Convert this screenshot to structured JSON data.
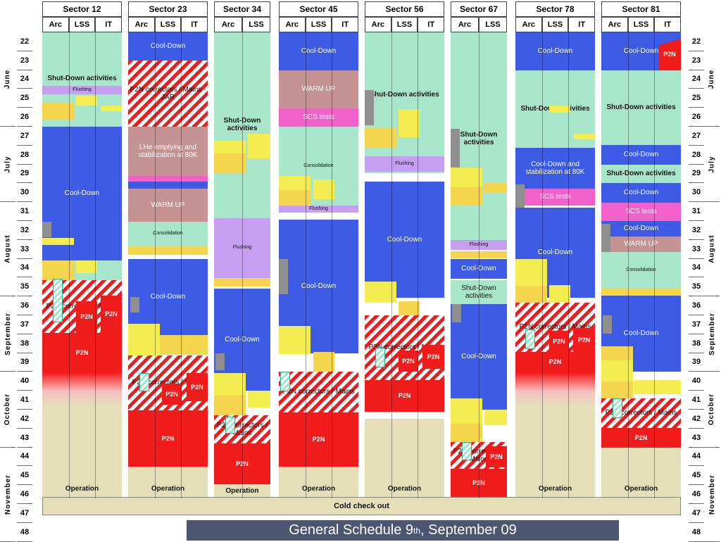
{
  "sectors": [
    {
      "name": "Sector 12",
      "subs": [
        "Arc",
        "LSS",
        "IT"
      ]
    },
    {
      "name": "Sector 23",
      "subs": [
        "Arc",
        "LSS",
        "IT"
      ]
    },
    {
      "name": "Sector 34",
      "subs": [
        "Arc",
        "LSS"
      ]
    },
    {
      "name": "Sector 45",
      "subs": [
        "Arc",
        "LSS",
        "IT"
      ]
    },
    {
      "name": "Sector 56",
      "subs": [
        "Arc",
        "LSS",
        "IT"
      ]
    },
    {
      "name": "Sector 67",
      "subs": [
        "Arc",
        "LSS"
      ]
    },
    {
      "name": "Sector 78",
      "subs": [
        "Arc",
        "LSS",
        "IT"
      ]
    },
    {
      "name": "Sector 81",
      "subs": [
        "Arc",
        "LSS",
        "IT"
      ]
    }
  ],
  "weeks": [
    "22",
    "23",
    "24",
    "25",
    "26",
    "27",
    "28",
    "29",
    "30",
    "31",
    "32",
    "33",
    "34",
    "35",
    "36",
    "37",
    "38",
    "39",
    "40",
    "41",
    "42",
    "43",
    "44",
    "45",
    "46",
    "47",
    "48"
  ],
  "months": [
    "June",
    "July",
    "August",
    "September",
    "October",
    "November"
  ],
  "labels": {
    "cool_down": "Cool-Down",
    "shutdown": "Shut-Down activities",
    "shutdown_short": "Shut-Down activities",
    "flushing": "Flushing",
    "warm_up": "WARM UP",
    "scs": "SCS tests",
    "consolidation": "Consolidation",
    "p2n": "P2N",
    "p2n_corr": "P2N correctors / Mains",
    "p2n_corr_long": "P2N correctors / Mains - JAR",
    "lhe": "LHe emptying and stabilization at 80K",
    "cd_stab": "Cool-Down and stabilization at 80K",
    "operation": "Operation",
    "cold_checkout": "Cold check out"
  },
  "footer": {
    "title": "General Schedule 9",
    "sup": "th",
    "rest": ", September 09"
  }
}
